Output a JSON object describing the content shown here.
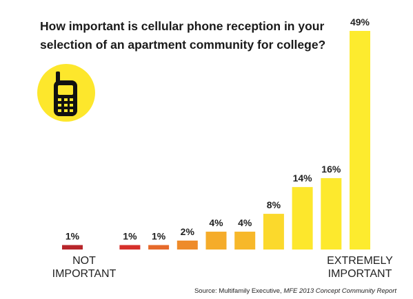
{
  "chart_data": {
    "type": "bar",
    "title": "How important is cellular phone reception in your selection of an apartment community for college?",
    "categories": [
      "NOT IMPORTANT",
      null,
      null,
      null,
      null,
      null,
      null,
      null,
      null,
      null,
      "EXTREMELY IMPORTANT"
    ],
    "values": [
      1,
      null,
      1,
      1,
      2,
      4,
      4,
      8,
      14,
      16,
      49
    ],
    "value_labels": [
      "1%",
      null,
      "1%",
      "1%",
      "2%",
      "4%",
      "4%",
      "8%",
      "14%",
      "16%",
      "49%"
    ],
    "colors": [
      "#b8262b",
      null,
      "#d6302b",
      "#e66a2b",
      "#ee8b2a",
      "#f5ac2a",
      "#f7b82a",
      "#fbd92c",
      "#fde72c",
      "#fde92d",
      "#fdeb2e"
    ],
    "ylim": [
      0,
      50
    ],
    "source": "Source: Multifamily Executive, ",
    "source_italic": "MFE 2013 Concept Community Report"
  }
}
